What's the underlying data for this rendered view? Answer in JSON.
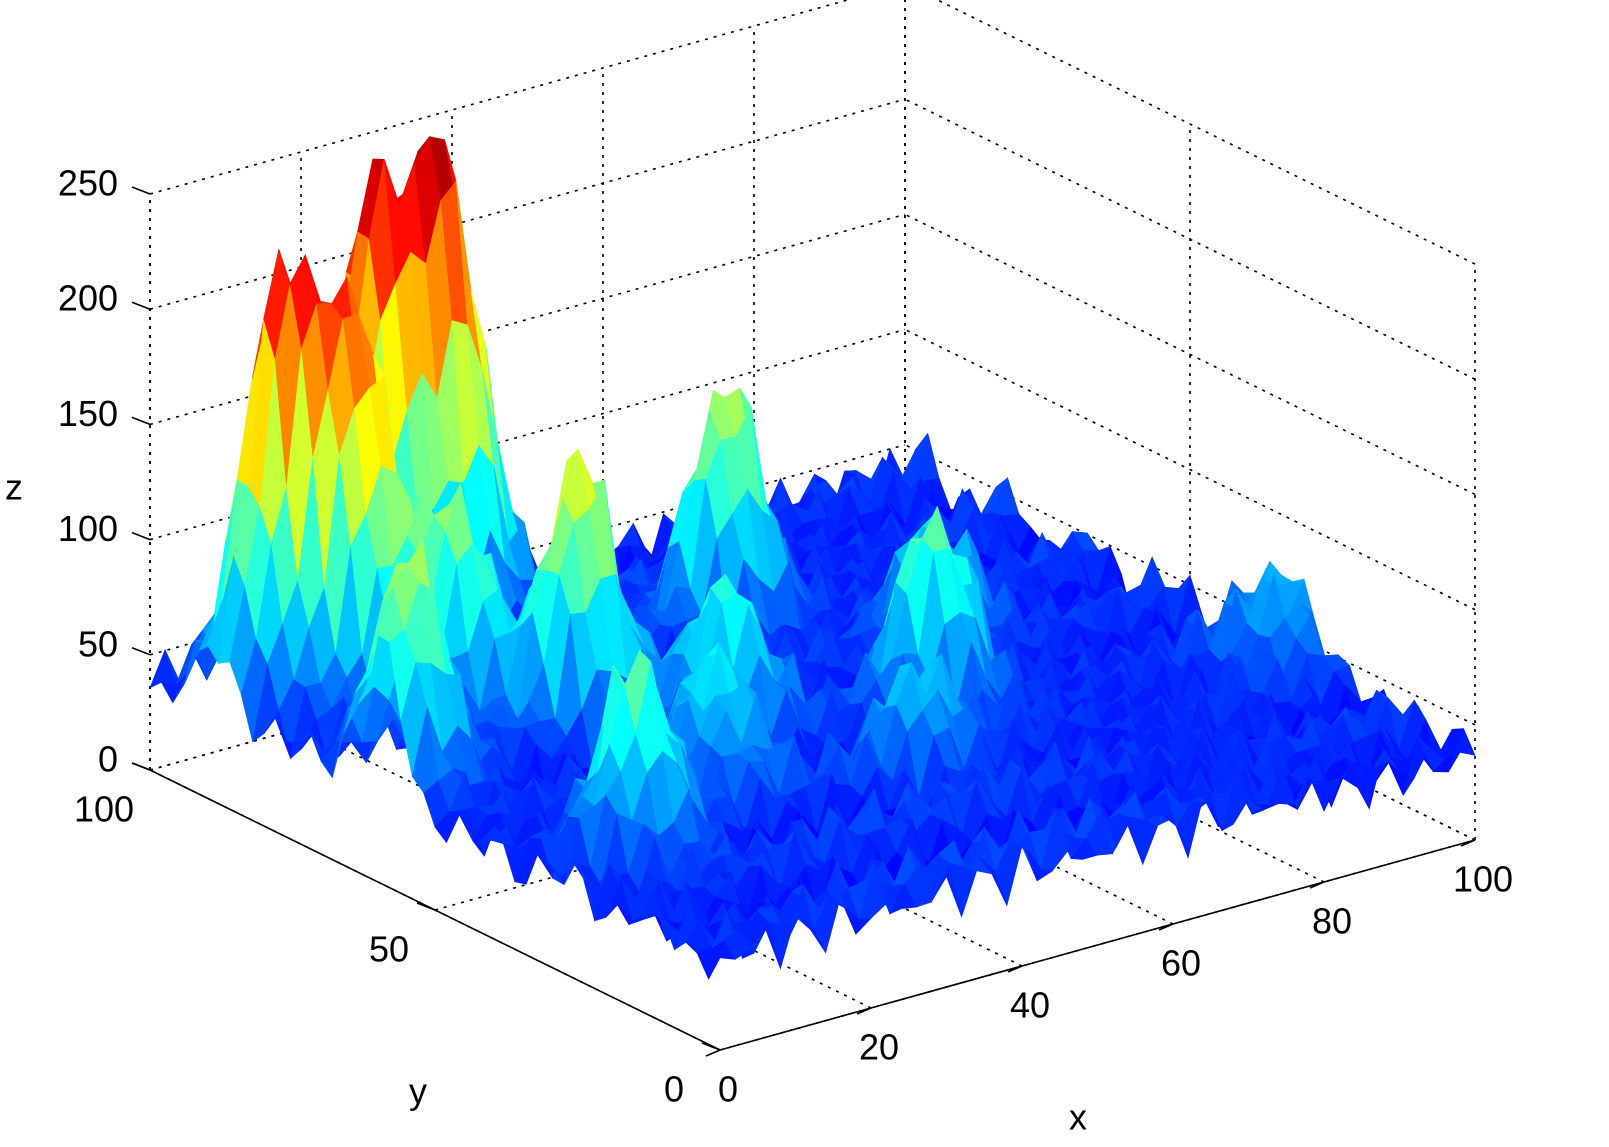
{
  "chart_data": {
    "type": "surface",
    "colormap": "jet",
    "xlabel": "x",
    "ylabel": "y",
    "zlabel": "z",
    "xlim": [
      0,
      100
    ],
    "ylim": [
      0,
      100
    ],
    "zlim": [
      0,
      250
    ],
    "xticks": [
      0,
      20,
      40,
      60,
      80,
      100
    ],
    "yticks": [
      0,
      50,
      100
    ],
    "zticks": [
      0,
      50,
      100,
      150,
      200,
      250
    ],
    "grid": true,
    "peaks": [
      {
        "x": 36,
        "y": 96,
        "z": 240
      },
      {
        "x": 27,
        "y": 97,
        "z": 225
      },
      {
        "x": 8,
        "y": 88,
        "z": 210
      },
      {
        "x": 14,
        "y": 82,
        "z": 195
      },
      {
        "x": 4,
        "y": 60,
        "z": 140
      },
      {
        "x": 20,
        "y": 72,
        "z": 125
      },
      {
        "x": 12,
        "y": 30,
        "z": 120
      },
      {
        "x": 28,
        "y": 62,
        "z": 150
      },
      {
        "x": 58,
        "y": 76,
        "z": 140
      },
      {
        "x": 62,
        "y": 44,
        "z": 120
      },
      {
        "x": 74,
        "y": 60,
        "z": 90
      },
      {
        "x": 98,
        "y": 32,
        "z": 85
      },
      {
        "x": 50,
        "y": 30,
        "z": 80
      },
      {
        "x": 30,
        "y": 40,
        "z": 100
      },
      {
        "x": 40,
        "y": 52,
        "z": 110
      }
    ],
    "baseline_z": 40
  }
}
